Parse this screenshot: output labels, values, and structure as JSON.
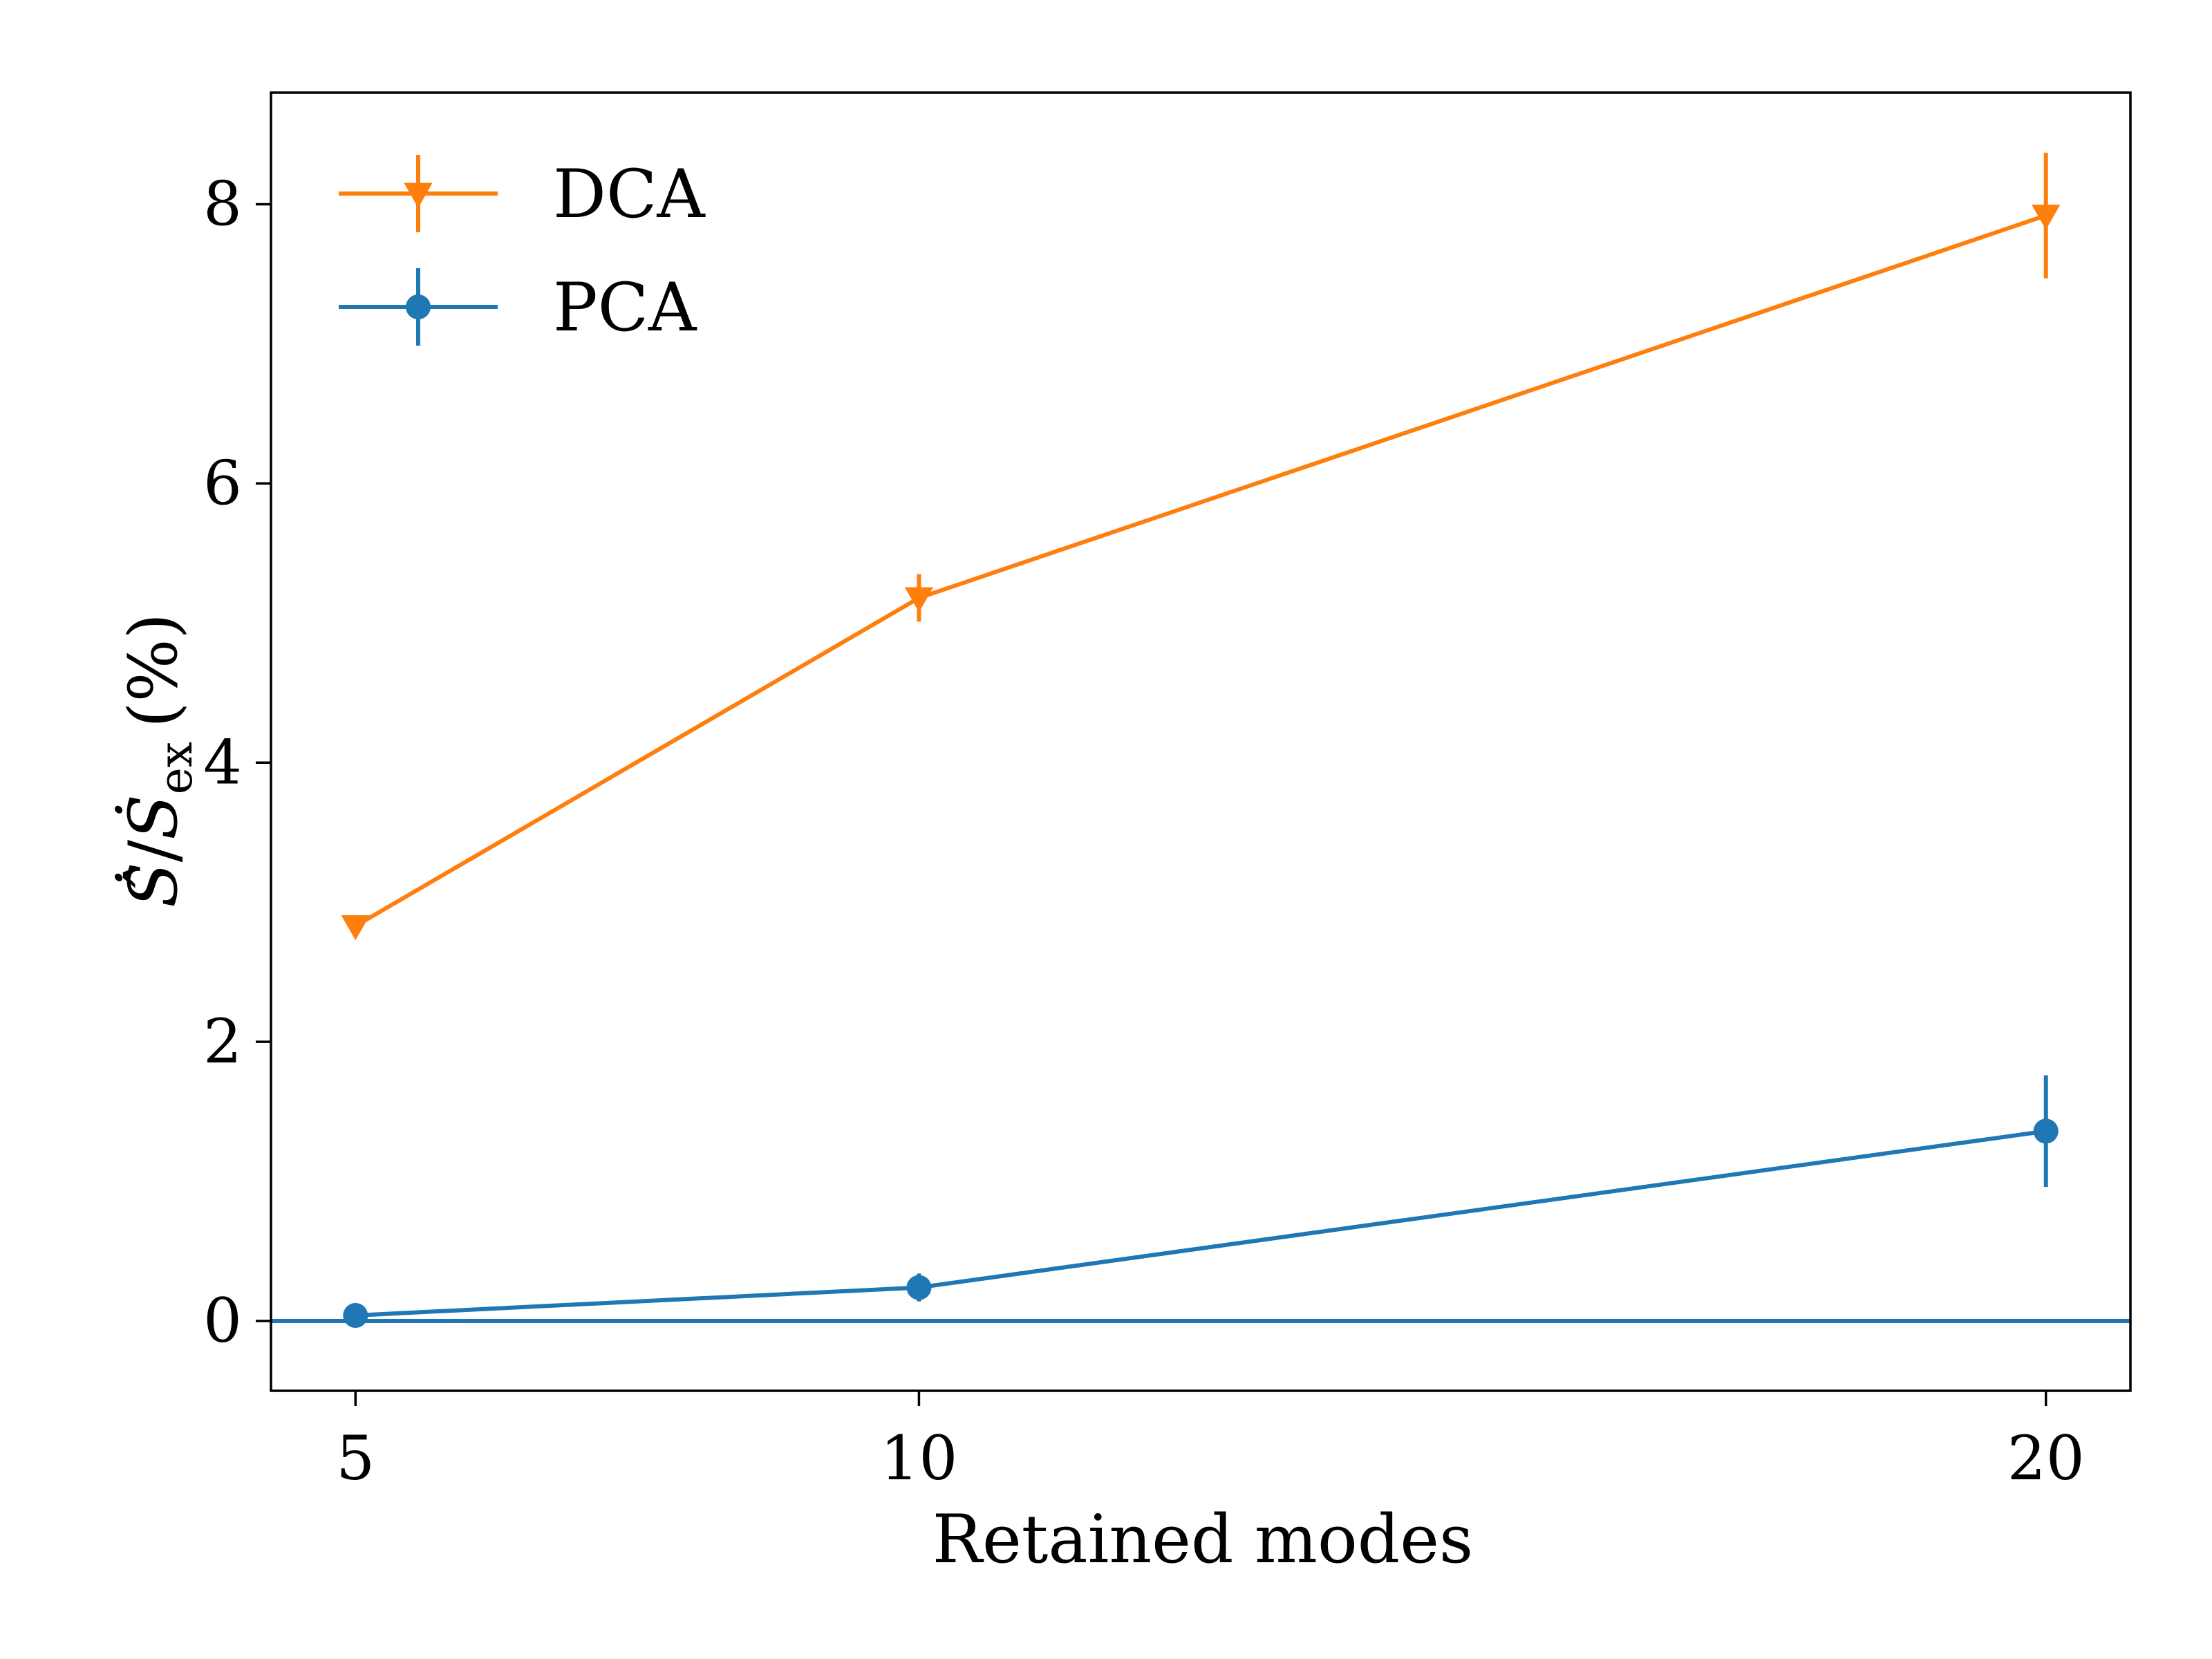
{
  "chart_data": {
    "type": "line",
    "xlabel": "Retained modes",
    "ylabel": "Ṡ̂ / Ṡex (%)",
    "ylabel_parts": {
      "hat_s": "Ṡ̂",
      "slash": "/",
      "dot_s": "Ṡ",
      "sub": "ex",
      "unit": "(%)"
    },
    "x_ticks": [
      5,
      10,
      20
    ],
    "y_ticks": [
      0,
      2,
      4,
      6,
      8
    ],
    "xlim": [
      4.25,
      20.75
    ],
    "ylim": [
      -0.5,
      8.8
    ],
    "grid": false,
    "legend_placement": "top-left",
    "reference_line": {
      "y": 0,
      "color": "#1f77b4"
    },
    "series": [
      {
        "name": "DCA",
        "color": "#ff7f0e",
        "marker": "triangle-down",
        "x": [
          5,
          10,
          20
        ],
        "y": [
          2.83,
          5.18,
          7.92
        ],
        "yerr": [
          0.05,
          0.17,
          0.45
        ]
      },
      {
        "name": "PCA",
        "color": "#1f77b4",
        "marker": "circle",
        "x": [
          5,
          10,
          20
        ],
        "y": [
          0.04,
          0.24,
          1.36
        ],
        "yerr": [
          0.03,
          0.1,
          0.4
        ]
      }
    ]
  }
}
